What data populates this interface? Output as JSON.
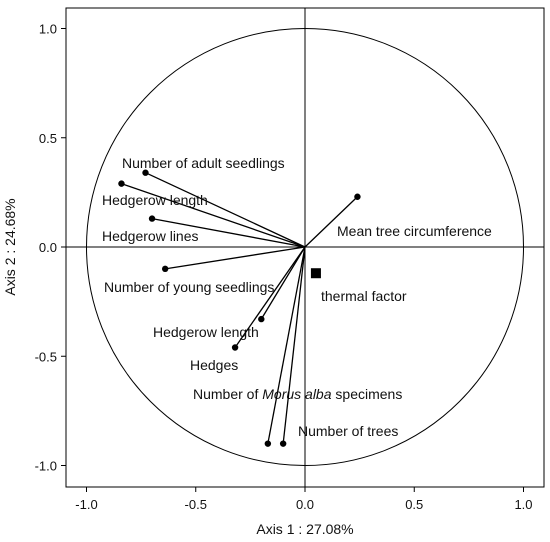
{
  "chart_data": {
    "type": "scatter",
    "subtype": "correlation-circle",
    "xlabel": "Axis 1 : 27.08%",
    "ylabel": "Axis 2 : 24.68%",
    "xlim": [
      -1.1,
      1.1
    ],
    "ylim": [
      -1.1,
      1.1
    ],
    "x_ticks": [
      "-1.0",
      "-0.5",
      "0.0",
      "0.5",
      "1.0"
    ],
    "y_ticks": [
      "1.0",
      "0.5",
      "0.0",
      "-0.5",
      "-1.0"
    ],
    "grid": false,
    "unit_circle": true,
    "vectors": [
      {
        "label": "Number of adult seedlings",
        "x": -0.73,
        "y": 0.34
      },
      {
        "label": "Hedgerow length",
        "x": -0.84,
        "y": 0.29
      },
      {
        "label": "Hedgerow lines",
        "x": -0.7,
        "y": 0.13
      },
      {
        "label": "Number of young seedlings",
        "x": -0.64,
        "y": -0.1
      },
      {
        "label": "Mean tree circumference",
        "x": 0.24,
        "y": 0.23
      },
      {
        "label": "Hedgerow length",
        "x": -0.2,
        "y": -0.33
      },
      {
        "label": "Hedges",
        "x": -0.32,
        "y": -0.46
      },
      {
        "label": "Number of Morus alba specimens",
        "label_parts": [
          "Number of ",
          "Morus alba",
          " specimens"
        ],
        "x": -0.17,
        "y": -0.9
      },
      {
        "label": "Number of trees",
        "x": -0.1,
        "y": -0.9
      }
    ],
    "supplementary": [
      {
        "label": "thermal factor",
        "x": 0.05,
        "y": -0.12,
        "marker": "square"
      }
    ]
  }
}
